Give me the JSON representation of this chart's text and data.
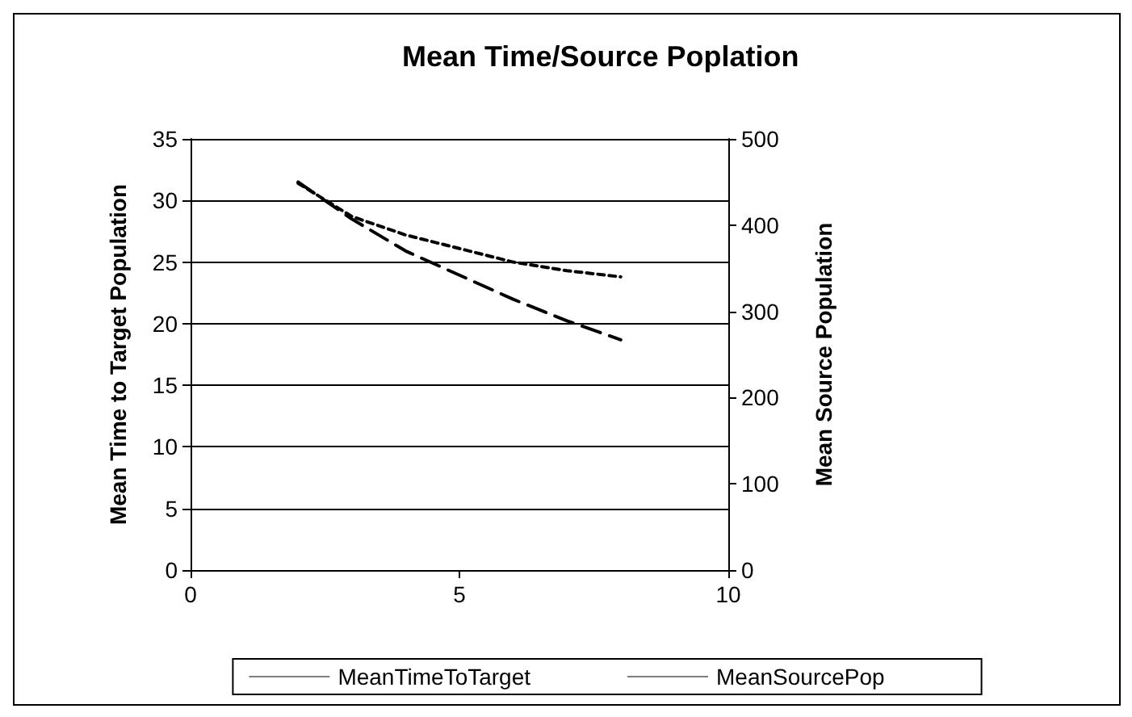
{
  "chart_data": {
    "type": "line",
    "title": "Mean Time/Source Poplation",
    "ylabel": "Mean Time to Target Population",
    "y2label": "Mean Source Population",
    "x": [
      2,
      3,
      4,
      5,
      6,
      7,
      8
    ],
    "series": [
      {
        "name": "MeanTimeToTarget",
        "color": "#000000",
        "line_style": "dotted",
        "values": [
          31.4,
          28.7,
          27.2,
          26.1,
          25.0,
          24.3,
          23.8
        ]
      },
      {
        "name": "MeanSourcePop",
        "color": "#000000",
        "line_style": "dashed",
        "axis": "y2",
        "values": [
          450,
          407,
          370,
          342,
          314,
          289,
          267
        ]
      }
    ],
    "xlim": [
      0,
      10
    ],
    "xticks": [
      0,
      5,
      10
    ],
    "ylim": [
      0,
      35
    ],
    "yticks": [
      0,
      5,
      10,
      15,
      20,
      25,
      30,
      35
    ],
    "y2lim": [
      0,
      500
    ],
    "y2ticks": [
      0,
      100,
      200,
      300,
      400,
      500
    ],
    "grid": "y",
    "legend": "bottom",
    "marker": "none"
  }
}
